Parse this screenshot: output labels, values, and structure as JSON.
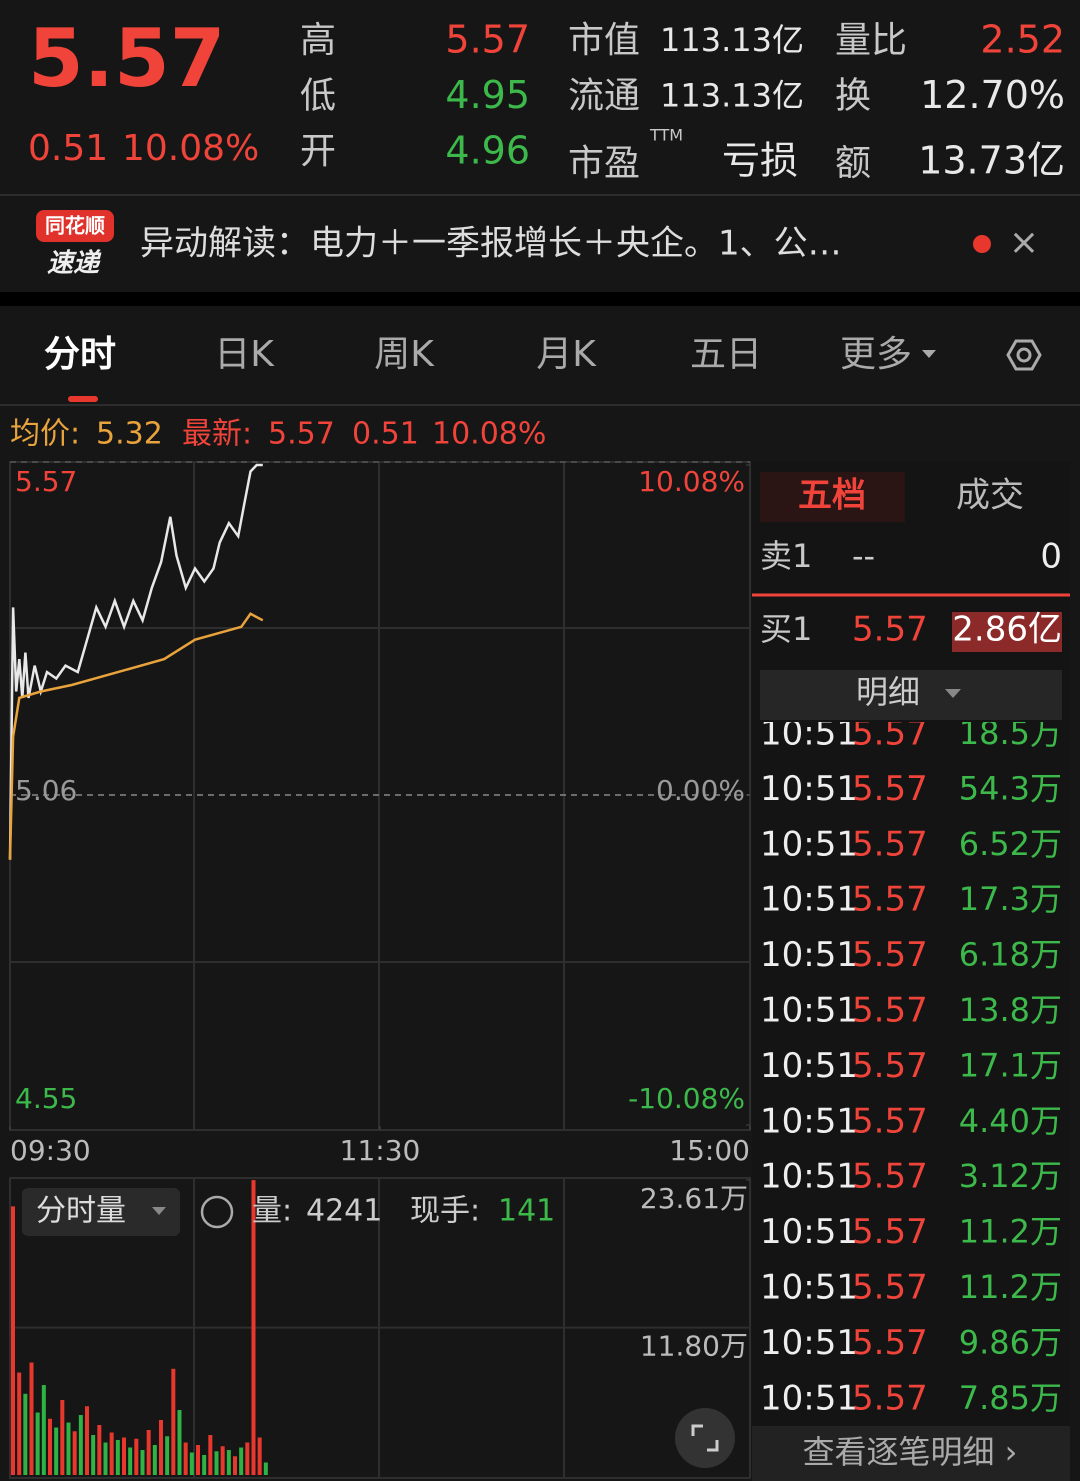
{
  "quote": {
    "price": "5.57",
    "change": "0.51",
    "pct": "10.08%",
    "col1": [
      {
        "label": "高",
        "value": "5.57"
      },
      {
        "label": "低",
        "value": "4.95"
      },
      {
        "label": "开",
        "value": "4.96"
      }
    ],
    "col2": [
      {
        "label": "市值",
        "value": "113.13亿"
      },
      {
        "label": "流通",
        "value": "113.13亿"
      },
      {
        "label": "市盈",
        "sup": "TTM",
        "value": "亏损"
      }
    ],
    "col3": [
      {
        "label": "量比",
        "value": "2.52"
      },
      {
        "label": "换",
        "value": "12.70%"
      },
      {
        "label": "额",
        "value": "13.73亿"
      }
    ]
  },
  "news": {
    "badge_top": "同花顺",
    "badge_bottom": "速递",
    "text": "异动解读：电力＋一季报增长＋央企。1、公…",
    "close": "×"
  },
  "tabs": [
    "分时",
    "日K",
    "周K",
    "月K",
    "五日",
    "更多"
  ],
  "info_bar": {
    "avg_label": "均价:",
    "avg": "5.32",
    "latest_label": "最新:",
    "latest": "5.57",
    "change": "0.51",
    "pct": "10.08%"
  },
  "chart_data": [
    {
      "type": "line",
      "xlim": [
        0,
        240
      ],
      "xticks": [
        {
          "value": 0,
          "label": "09:30"
        },
        {
          "value": 120,
          "label": "11:30"
        },
        {
          "value": 240,
          "label": "15:00"
        }
      ],
      "ylim": [
        4.55,
        5.57
      ],
      "yticks": [
        4.55,
        5.06,
        5.57
      ],
      "y2lim": [
        -10.08,
        10.08
      ],
      "y2ticks": [
        {
          "value": -10.08,
          "label": "-10.08%"
        },
        {
          "value": 0,
          "label": "0.00%"
        },
        {
          "value": 10.08,
          "label": "10.08%"
        }
      ],
      "series": [
        {
          "color": "#e8e8e8",
          "x": [
            0,
            1,
            2,
            3,
            4,
            5,
            6,
            8,
            10,
            12,
            15,
            18,
            22,
            25,
            28,
            31,
            34,
            37,
            40,
            43,
            46,
            49,
            52,
            54,
            57,
            60,
            63,
            66,
            68,
            71,
            74,
            76,
            78,
            80,
            82
          ],
          "values": [
            4.96,
            5.35,
            5.22,
            5.27,
            5.21,
            5.28,
            5.21,
            5.26,
            5.22,
            5.25,
            5.24,
            5.26,
            5.25,
            5.3,
            5.35,
            5.32,
            5.36,
            5.32,
            5.36,
            5.33,
            5.38,
            5.42,
            5.49,
            5.43,
            5.38,
            5.41,
            5.39,
            5.41,
            5.45,
            5.48,
            5.46,
            5.51,
            5.56,
            5.57,
            5.57
          ]
        },
        {
          "color": "#e9a33c",
          "x": [
            0,
            1,
            3,
            10,
            20,
            35,
            50,
            60,
            75,
            78,
            82
          ],
          "values": [
            4.96,
            5.15,
            5.21,
            5.22,
            5.23,
            5.25,
            5.27,
            5.3,
            5.32,
            5.34,
            5.33
          ]
        }
      ]
    },
    {
      "type": "bar",
      "title": "分时量",
      "vol_label": "量:",
      "vol": "4241",
      "hand_label": "现手:",
      "hand": "141",
      "xlim": [
        0,
        240
      ],
      "ylim": [
        0,
        23.61
      ],
      "yticks": [
        {
          "value": 11.8,
          "label": "11.80万"
        },
        {
          "value": 23.61,
          "label": "23.61万"
        }
      ],
      "x": [
        0,
        2,
        4,
        6,
        8,
        10,
        12,
        14,
        16,
        18,
        20,
        22,
        24,
        26,
        28,
        30,
        32,
        34,
        36,
        38,
        40,
        42,
        44,
        46,
        48,
        50,
        52,
        54,
        56,
        58,
        60,
        62,
        64,
        66,
        68,
        70,
        72,
        74,
        76,
        78,
        80,
        82
      ],
      "series": [
        {
          "color": "#e8382e",
          "values": [
            21.5,
            8.2,
            null,
            9.0,
            null,
            null,
            4.5,
            null,
            6.0,
            null,
            3.5,
            null,
            5.5,
            null,
            4.0,
            null,
            3.4,
            null,
            3.0,
            null,
            2.9,
            null,
            3.6,
            null,
            4.4,
            null,
            8.5,
            null,
            2.6,
            null,
            2.4,
            null,
            3.2,
            null,
            2.3,
            null,
            1.5,
            null,
            2.6,
            23.6,
            3.0,
            null
          ]
        },
        {
          "color": "#2fb344",
          "values": [
            null,
            null,
            6.5,
            null,
            5.0,
            7.2,
            null,
            3.8,
            null,
            4.2,
            null,
            4.8,
            null,
            3.2,
            null,
            2.6,
            null,
            2.8,
            null,
            2.2,
            null,
            2.0,
            null,
            2.4,
            null,
            3.1,
            null,
            5.2,
            null,
            1.8,
            null,
            1.6,
            null,
            1.9,
            null,
            2.0,
            null,
            2.2,
            null,
            null,
            null,
            1.0
          ]
        }
      ]
    }
  ],
  "book": {
    "tabs": [
      "五档",
      "成交"
    ],
    "sell": {
      "label": "卖1",
      "price": "--",
      "vol": "0"
    },
    "buy": {
      "label": "买1",
      "price": "5.57",
      "vol": "2.86亿"
    },
    "detail": "明细",
    "trades": [
      {
        "time": "10:51",
        "price": "5.57",
        "vol": "18.5万"
      },
      {
        "time": "10:51",
        "price": "5.57",
        "vol": "54.3万"
      },
      {
        "time": "10:51",
        "price": "5.57",
        "vol": "6.52万"
      },
      {
        "time": "10:51",
        "price": "5.57",
        "vol": "17.3万"
      },
      {
        "time": "10:51",
        "price": "5.57",
        "vol": "6.18万"
      },
      {
        "time": "10:51",
        "price": "5.57",
        "vol": "13.8万"
      },
      {
        "time": "10:51",
        "price": "5.57",
        "vol": "17.1万"
      },
      {
        "time": "10:51",
        "price": "5.57",
        "vol": "4.40万"
      },
      {
        "time": "10:51",
        "price": "5.57",
        "vol": "3.12万"
      },
      {
        "time": "10:51",
        "price": "5.57",
        "vol": "11.2万"
      },
      {
        "time": "10:51",
        "price": "5.57",
        "vol": "11.2万"
      },
      {
        "time": "10:51",
        "price": "5.57",
        "vol": "9.86万"
      },
      {
        "time": "10:51",
        "price": "5.57",
        "vol": "7.85万"
      }
    ],
    "more": "查看逐笔明细 ›"
  }
}
